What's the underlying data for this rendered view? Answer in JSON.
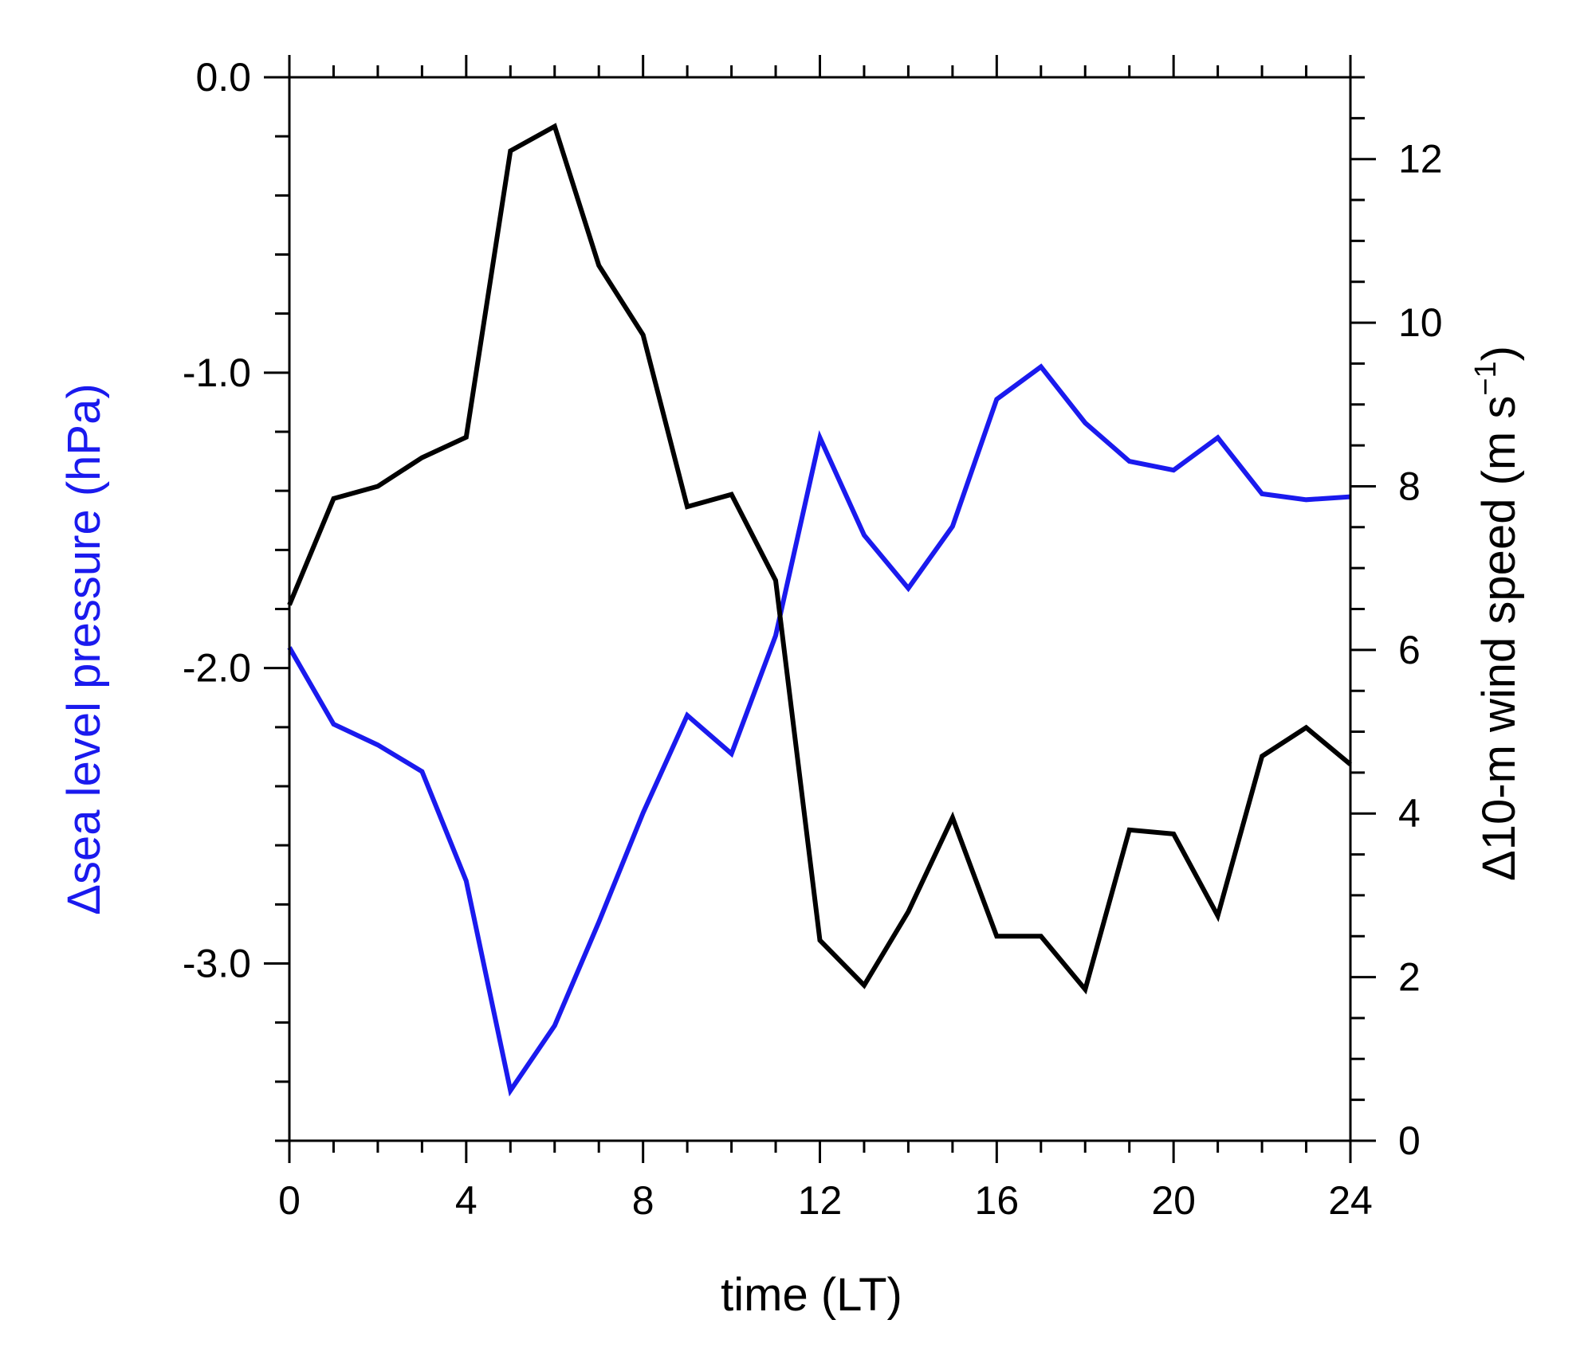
{
  "chart_data": {
    "type": "line",
    "x": [
      0,
      1,
      2,
      3,
      4,
      5,
      6,
      7,
      8,
      9,
      10,
      11,
      12,
      13,
      14,
      15,
      16,
      17,
      18,
      19,
      20,
      21,
      22,
      23,
      24
    ],
    "xlabel": "time (LT)",
    "xlim": [
      0,
      24
    ],
    "xticks": [
      0,
      4,
      8,
      12,
      16,
      20,
      24
    ],
    "xtick_labels": [
      "0",
      "4",
      "8",
      "12",
      "16",
      "20",
      "24"
    ],
    "y_left": {
      "label": "Δsea level pressure (hPa)",
      "lim": [
        -3.6,
        0.0
      ],
      "ticks": [
        0.0,
        -1.0,
        -2.0,
        -3.0
      ],
      "tick_labels": [
        "0.0",
        "-1.0",
        "-2.0",
        "-3.0"
      ],
      "color": "#1a1aee"
    },
    "y_right": {
      "label_main": "Δ10-m wind speed (m s",
      "label_sup": "−1",
      "label_end": ")",
      "lim": [
        0,
        13
      ],
      "ticks": [
        0,
        2,
        4,
        6,
        8,
        10,
        12
      ],
      "tick_labels": [
        "0",
        "2",
        "4",
        "6",
        "8",
        "10",
        "12"
      ],
      "color": "#000000"
    },
    "series": [
      {
        "axis": "left",
        "color": "#1a1aee",
        "values": [
          -1.93,
          -2.19,
          -2.26,
          -2.35,
          -2.72,
          -3.43,
          -3.21,
          -2.86,
          -2.49,
          -2.16,
          -2.29,
          -1.89,
          -1.22,
          -1.55,
          -1.73,
          -1.52,
          -1.09,
          -0.98,
          -1.17,
          -1.3,
          -1.33,
          -1.22,
          -1.41,
          -1.43,
          -1.42
        ]
      },
      {
        "axis": "right",
        "color": "#000000",
        "values": [
          6.55,
          7.85,
          8.0,
          8.35,
          8.6,
          12.1,
          12.4,
          10.7,
          9.85,
          7.75,
          7.9,
          6.85,
          2.45,
          1.9,
          2.8,
          3.95,
          2.5,
          2.5,
          1.85,
          3.8,
          3.75,
          2.75,
          4.7,
          5.05,
          4.6
        ]
      }
    ]
  }
}
